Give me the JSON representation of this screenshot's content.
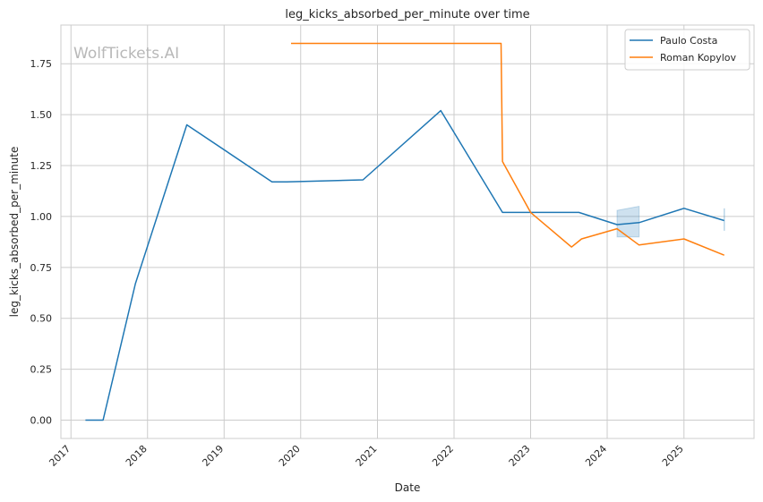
{
  "chart_data": {
    "type": "line",
    "title": "leg_kicks_absorbed_per_minute over time",
    "xlabel": "Date",
    "ylabel": "leg_kicks_absorbed_per_minute",
    "watermark": "WolfTickets.AI",
    "legend_position": "top-right",
    "grid": true,
    "xlim": [
      "2016-11-14",
      "2025-12-01"
    ],
    "ylim": [
      -0.09,
      1.94
    ],
    "x_ticks": [
      "2017",
      "2018",
      "2019",
      "2020",
      "2021",
      "2022",
      "2023",
      "2024",
      "2025"
    ],
    "y_ticks": [
      "0.00",
      "0.25",
      "0.50",
      "0.75",
      "1.00",
      "1.25",
      "1.50",
      "1.75"
    ],
    "series": [
      {
        "name": "Paulo Costa",
        "color": "#1f77b4",
        "points": [
          {
            "x": "2017-03-11",
            "y": 0.0
          },
          {
            "x": "2017-06-03",
            "y": 0.0
          },
          {
            "x": "2017-11-04",
            "y": 0.67
          },
          {
            "x": "2018-07-07",
            "y": 1.45
          },
          {
            "x": "2019-08-17",
            "y": 1.17
          },
          {
            "x": "2019-10-26",
            "y": 1.17
          },
          {
            "x": "2020-10-24",
            "y": 1.18
          },
          {
            "x": "2021-10-30",
            "y": 1.52
          },
          {
            "x": "2022-08-20",
            "y": 1.02
          },
          {
            "x": "2023-08-19",
            "y": 1.02
          },
          {
            "x": "2024-02-17",
            "y": 0.96
          },
          {
            "x": "2024-06-01",
            "y": 0.97
          },
          {
            "x": "2025-01-01",
            "y": 1.04
          },
          {
            "x": "2025-07-12",
            "y": 0.98
          }
        ],
        "bands": [
          {
            "x_start": "2024-02-17",
            "x_end": "2024-06-01",
            "lower_start": 0.9,
            "upper_start": 1.03,
            "lower_end": 0.9,
            "upper_end": 1.05
          },
          {
            "x_start": "2025-07-12",
            "x_end": "2025-07-12",
            "lower_start": 0.93,
            "upper_start": 1.04,
            "lower_end": 0.93,
            "upper_end": 1.04
          }
        ]
      },
      {
        "name": "Roman Kopylov",
        "color": "#ff7f0e",
        "points": [
          {
            "x": "2019-11-16",
            "y": 1.85
          },
          {
            "x": "2022-08-13",
            "y": 1.85
          },
          {
            "x": "2022-08-20",
            "y": 1.27
          },
          {
            "x": "2023-01-01",
            "y": 1.02
          },
          {
            "x": "2023-07-15",
            "y": 0.85
          },
          {
            "x": "2023-09-01",
            "y": 0.89
          },
          {
            "x": "2024-02-17",
            "y": 0.94
          },
          {
            "x": "2024-06-01",
            "y": 0.86
          },
          {
            "x": "2025-01-01",
            "y": 0.89
          },
          {
            "x": "2025-07-12",
            "y": 0.81
          }
        ]
      }
    ]
  }
}
